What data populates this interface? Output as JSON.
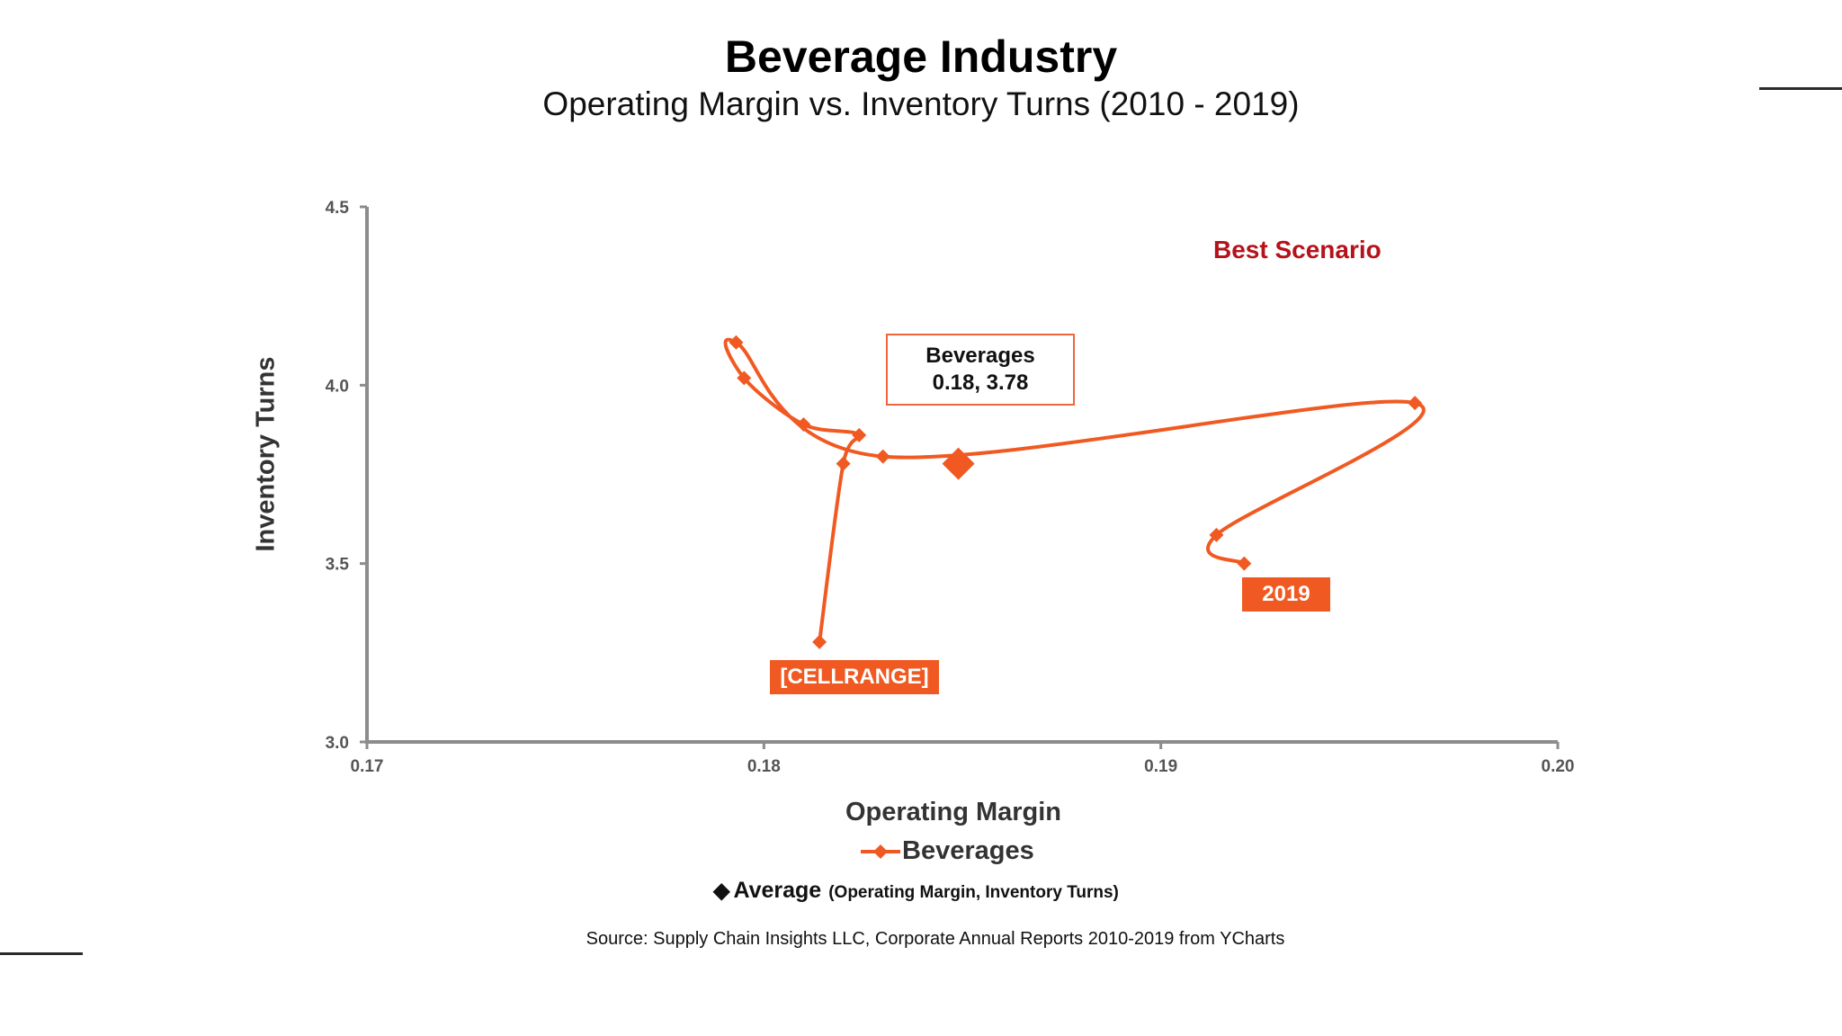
{
  "header": {
    "title": "Beverage Industry",
    "subtitle": "Operating Margin vs. Inventory Turns (2010 - 2019)"
  },
  "chart_data": {
    "type": "line",
    "title": "Beverage Industry",
    "subtitle": "Operating Margin vs. Inventory Turns (2010 - 2019)",
    "xlabel": "Operating Margin",
    "ylabel": "Inventory Turns",
    "xlim": [
      0.17,
      0.2
    ],
    "ylim": [
      3.0,
      4.5
    ],
    "x_ticks": [
      "0.17",
      "0.18",
      "0.19",
      "0.20"
    ],
    "y_ticks": [
      "3.0",
      "3.5",
      "4.0",
      "4.5"
    ],
    "grid": false,
    "legend_position": "bottom",
    "series": [
      {
        "name": "Beverages",
        "color": "#f05a22",
        "x": [
          0.1814,
          0.182,
          0.1824,
          0.181,
          0.1795,
          0.1793,
          0.183,
          0.1964,
          0.1914,
          0.1921
        ],
        "y": [
          3.28,
          3.78,
          3.86,
          3.89,
          4.02,
          4.12,
          3.8,
          3.95,
          3.58,
          3.5
        ]
      }
    ],
    "average": {
      "x": 0.18,
      "y": 3.78,
      "plot_x": 0.1849,
      "plot_y": 3.78,
      "color": "#f05a22"
    },
    "annotations": {
      "best_scenario": "Best Scenario",
      "average_label_title": "Beverages",
      "average_label_value": "0.18, 3.78",
      "start_label": "[CELLRANGE]",
      "end_label": "2019"
    }
  },
  "legend": {
    "series_label": "Beverages",
    "average_label": "Average",
    "average_note": "(Operating Margin, Inventory Turns)"
  },
  "source": "Source:  Supply Chain Insights LLC, Corporate Annual Reports 2010-2019 from YCharts"
}
